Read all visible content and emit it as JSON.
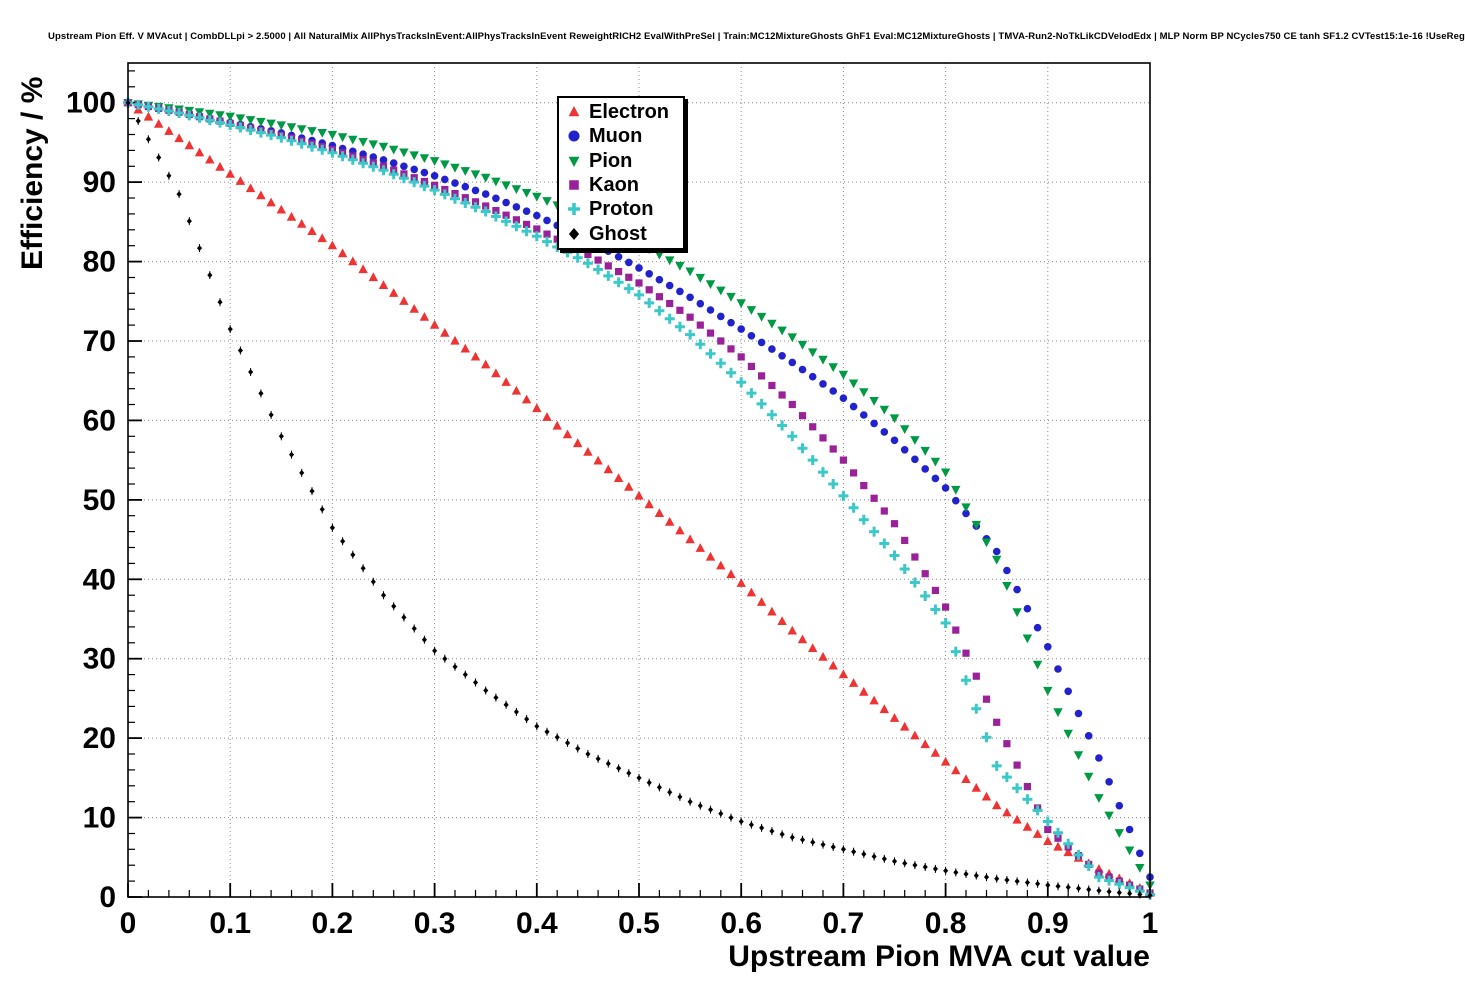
{
  "chart_data": {
    "type": "scatter",
    "title": "Upstream Pion Eff. V MVAcut | CombDLLpi > 2.5000 | All NaturalMix AllPhysTracksInEvent:AllPhysTracksInEvent ReweightRICH2 EvalWithPreSel | Train:MC12MixtureGhosts GhF1 Eval:MC12MixtureGhosts | TMVA-Run2-NoTkLikCDVelodEdx | MLP Norm BP NCycles750 CE tanh SF1.2 CVTest15:1e-16 !UseReg",
    "xlabel": "Upstream Pion MVA cut value",
    "ylabel": "Efficiency / %",
    "xlim": [
      0,
      1
    ],
    "ylim": [
      0,
      105
    ],
    "grid": true,
    "legend_position": "top-center",
    "x_ticks": {
      "values": [
        0,
        0.1,
        0.2,
        0.3,
        0.4,
        0.5,
        0.6,
        0.7,
        0.8,
        0.9,
        1
      ],
      "labels": [
        "0",
        "0.1",
        "0.2",
        "0.3",
        "0.4",
        "0.5",
        "0.6",
        "0.7",
        "0.8",
        "0.9",
        "1"
      ]
    },
    "y_ticks": {
      "values": [
        0,
        10,
        20,
        30,
        40,
        50,
        60,
        70,
        80,
        90,
        100
      ],
      "labels": [
        "0",
        "10",
        "20",
        "30",
        "40",
        "50",
        "60",
        "70",
        "80",
        "90",
        "100"
      ]
    },
    "series": [
      {
        "name": "Electron",
        "color": "#ee3333",
        "marker": "triangle-up",
        "x": [
          0,
          0.05,
          0.1,
          0.15,
          0.2,
          0.25,
          0.3,
          0.35,
          0.4,
          0.45,
          0.5,
          0.55,
          0.6,
          0.65,
          0.7,
          0.75,
          0.8,
          0.85,
          0.9,
          0.95,
          1
        ],
        "y": [
          100,
          95.5,
          91,
          86.5,
          82,
          77,
          72,
          67,
          61.5,
          56,
          50.5,
          45,
          39.5,
          33.5,
          28,
          22.5,
          17,
          11.5,
          7,
          3.5,
          0.5
        ]
      },
      {
        "name": "Muon",
        "color": "#2222cc",
        "marker": "circle",
        "x": [
          0,
          0.05,
          0.1,
          0.15,
          0.2,
          0.25,
          0.3,
          0.35,
          0.4,
          0.45,
          0.5,
          0.55,
          0.6,
          0.65,
          0.7,
          0.75,
          0.8,
          0.85,
          0.9,
          0.95,
          1
        ],
        "y": [
          100,
          98.8,
          97.5,
          96.2,
          94.6,
          92.8,
          90.8,
          88.5,
          85.8,
          82.7,
          79.2,
          75.5,
          71.5,
          67.3,
          62.8,
          57.5,
          51.5,
          43.5,
          31.5,
          17.5,
          2.5
        ]
      },
      {
        "name": "Pion",
        "color": "#009944",
        "marker": "triangle-down",
        "x": [
          0,
          0.05,
          0.1,
          0.15,
          0.2,
          0.25,
          0.3,
          0.35,
          0.4,
          0.45,
          0.5,
          0.55,
          0.6,
          0.65,
          0.7,
          0.75,
          0.8,
          0.85,
          0.9,
          0.95,
          1
        ],
        "y": [
          100,
          99.2,
          98.3,
          97.2,
          96,
          94.5,
          92.7,
          90.6,
          88.2,
          85.5,
          82.3,
          78.8,
          74.8,
          70.5,
          65.8,
          60.3,
          53.5,
          42.5,
          26,
          12.5,
          1.5
        ]
      },
      {
        "name": "Kaon",
        "color": "#992299",
        "marker": "square",
        "x": [
          0,
          0.05,
          0.1,
          0.15,
          0.2,
          0.25,
          0.3,
          0.35,
          0.4,
          0.45,
          0.5,
          0.55,
          0.6,
          0.65,
          0.7,
          0.75,
          0.8,
          0.85,
          0.9,
          0.95,
          1
        ],
        "y": [
          100,
          98.8,
          97.4,
          95.9,
          94.1,
          92,
          89.6,
          87,
          84.1,
          80.9,
          77.3,
          73,
          68,
          62,
          55,
          47,
          36.5,
          22,
          8.5,
          3,
          0.5
        ]
      },
      {
        "name": "Proton",
        "color": "#3cc8c8",
        "marker": "cross",
        "x": [
          0,
          0.05,
          0.1,
          0.15,
          0.2,
          0.25,
          0.3,
          0.35,
          0.4,
          0.45,
          0.5,
          0.55,
          0.6,
          0.65,
          0.7,
          0.75,
          0.8,
          0.85,
          0.9,
          0.95,
          1
        ],
        "y": [
          100,
          98.7,
          97.2,
          95.6,
          93.7,
          91.5,
          89,
          86.3,
          83.2,
          79.8,
          75.8,
          70.8,
          64.8,
          58,
          50.5,
          43,
          34.5,
          16.5,
          9.5,
          2.5,
          0.3
        ]
      },
      {
        "name": "Ghost",
        "color": "#000000",
        "marker": "diamond",
        "x": [
          0,
          0.05,
          0.1,
          0.15,
          0.2,
          0.25,
          0.3,
          0.35,
          0.4,
          0.45,
          0.5,
          0.55,
          0.6,
          0.65,
          0.7,
          0.75,
          0.8,
          0.85,
          0.9,
          0.95,
          1
        ],
        "y": [
          100,
          88.5,
          71.5,
          58,
          46.5,
          38,
          31,
          26,
          21.5,
          18,
          15,
          12,
          9.5,
          7.5,
          6,
          4.5,
          3.3,
          2.3,
          1.5,
          0.8,
          0.2
        ]
      }
    ]
  }
}
